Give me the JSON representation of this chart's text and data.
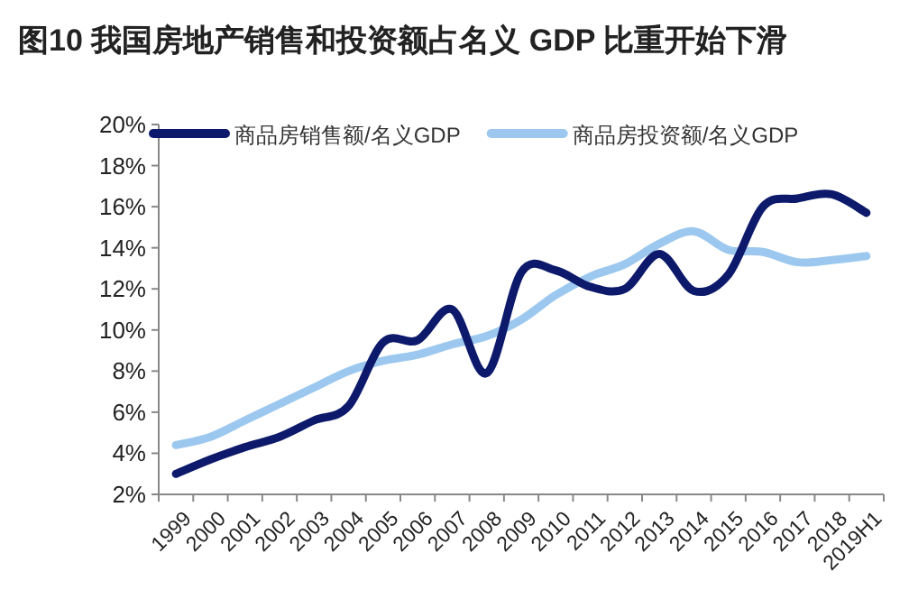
{
  "chart_data": {
    "type": "line",
    "title": "图10 我国房地产销售和投资额占名义 GDP 比重开始下滑",
    "categories": [
      "1999",
      "2000",
      "2001",
      "2002",
      "2003",
      "2004",
      "2005",
      "2006",
      "2007",
      "2008",
      "2009",
      "2010",
      "2011",
      "2012",
      "2013",
      "2014",
      "2015",
      "2016",
      "2017",
      "2018",
      "2019H1"
    ],
    "series": [
      {
        "name": "商品房销售额/名义GDP",
        "color": "#0d1a6b",
        "values": [
          3.0,
          3.7,
          4.3,
          4.8,
          5.6,
          6.3,
          9.4,
          9.5,
          11.0,
          7.9,
          12.8,
          12.9,
          12.1,
          12.0,
          13.7,
          11.9,
          12.7,
          16.0,
          16.4,
          16.6,
          15.7
        ]
      },
      {
        "name": "商品房投资额/名义GDP",
        "color": "#9cc8ef",
        "values": [
          4.4,
          4.8,
          5.6,
          6.4,
          7.2,
          8.0,
          8.5,
          8.8,
          9.3,
          9.7,
          10.5,
          11.7,
          12.6,
          13.2,
          14.2,
          14.8,
          13.9,
          13.8,
          13.3,
          13.4,
          13.6
        ]
      }
    ],
    "ylim": [
      2,
      20
    ],
    "yticks": [
      {
        "value": 2,
        "label": "2%"
      },
      {
        "value": 4,
        "label": "4%"
      },
      {
        "value": 6,
        "label": "6%"
      },
      {
        "value": 8,
        "label": "8%"
      },
      {
        "value": 10,
        "label": "10%"
      },
      {
        "value": 12,
        "label": "12%"
      },
      {
        "value": 14,
        "label": "14%"
      },
      {
        "value": 16,
        "label": "16%"
      },
      {
        "value": 18,
        "label": "18%"
      },
      {
        "value": 20,
        "label": "20%"
      }
    ],
    "grid": false,
    "legend": "top",
    "marker": "none",
    "line_style": "solid"
  }
}
